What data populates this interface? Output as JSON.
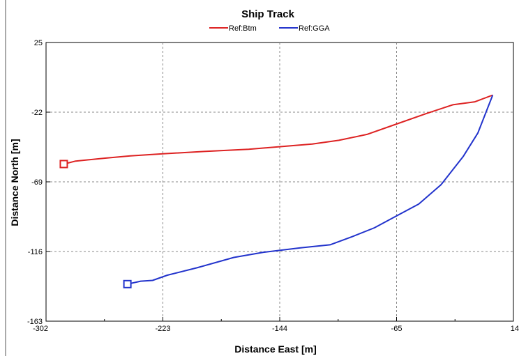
{
  "chart_data": {
    "type": "line",
    "title": "Ship Track",
    "xlabel": "Distance East [m]",
    "ylabel": "Distance North [m]",
    "xlim": [
      -302,
      14
    ],
    "ylim": [
      -163,
      25
    ],
    "xticks": [
      -302,
      -223,
      -144,
      -65,
      14
    ],
    "yticks": [
      25,
      -22,
      -69,
      -116,
      -163
    ],
    "xtick_labels": [
      "-302",
      "-223",
      "-144",
      "-65",
      "14"
    ],
    "ytick_labels": [
      "25",
      "-22",
      "-69",
      "-116",
      "-163"
    ],
    "grid": true,
    "legend": "top-center",
    "series": [
      {
        "name": "Ref:Btm",
        "color": "#dd2222",
        "start_marker": "square",
        "x": [
          -290,
          -282,
          -262,
          -245,
          -222,
          -195,
          -165,
          -140,
          -122,
          -104,
          -85,
          -65,
          -45,
          -27,
          -12,
          0
        ],
        "y": [
          -57,
          -55,
          -53,
          -51.5,
          -50,
          -48.5,
          -47,
          -45,
          -43.5,
          -41,
          -37,
          -30,
          -23,
          -17,
          -15,
          -10.5
        ]
      },
      {
        "name": "Ref:GGA",
        "color": "#2233cc",
        "start_marker": "square",
        "x": [
          -247,
          -238,
          -230,
          -220,
          -200,
          -175,
          -155,
          -130,
          -110,
          -95,
          -80,
          -65,
          -50,
          -35,
          -20,
          -10,
          0
        ],
        "y": [
          -138,
          -136,
          -135.5,
          -132,
          -127,
          -120,
          -116.5,
          -113.5,
          -111.5,
          -106,
          -100,
          -92,
          -84,
          -71,
          -52,
          -36,
          -10.5
        ]
      }
    ]
  }
}
